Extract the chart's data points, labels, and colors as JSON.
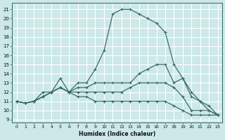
{
  "background_color": "#cce8e8",
  "grid_color": "#ffffff",
  "line_color": "#336666",
  "xlabel": "Humidex (Indice chaleur)",
  "xlim": [
    -0.5,
    23.5
  ],
  "ylim": [
    8.7,
    21.7
  ],
  "xticks": [
    0,
    1,
    2,
    3,
    4,
    5,
    6,
    7,
    8,
    9,
    10,
    11,
    12,
    13,
    14,
    15,
    16,
    17,
    18,
    19,
    20,
    21,
    22,
    23
  ],
  "yticks": [
    9,
    10,
    11,
    12,
    13,
    14,
    15,
    16,
    17,
    18,
    19,
    20,
    21
  ],
  "series": [
    [
      11,
      10.8,
      11,
      12,
      12,
      13.5,
      12,
      13,
      13,
      14.5,
      16.5,
      20.5,
      21,
      21,
      20.5,
      20,
      19.5,
      18.5,
      15,
      13.5,
      12,
      11,
      10.5,
      9.5
    ],
    [
      11,
      10.8,
      11,
      11.5,
      12,
      12.5,
      12,
      12.5,
      12.5,
      13,
      13,
      13,
      13,
      13,
      14,
      14.5,
      15,
      15,
      13,
      13.5,
      11.5,
      11,
      10,
      9.5
    ],
    [
      11,
      10.8,
      11,
      11.5,
      12,
      12.5,
      12,
      12,
      12,
      12,
      12,
      12,
      12,
      12.5,
      13,
      13,
      13,
      13,
      12.5,
      11.5,
      10,
      10,
      10,
      9.5
    ],
    [
      11,
      10.8,
      11,
      11.5,
      12,
      12.5,
      12,
      11.5,
      11.5,
      11,
      11,
      11,
      11,
      11,
      11,
      11,
      11,
      11,
      10.5,
      10,
      9.5,
      9.5,
      9.5,
      9.5
    ]
  ]
}
